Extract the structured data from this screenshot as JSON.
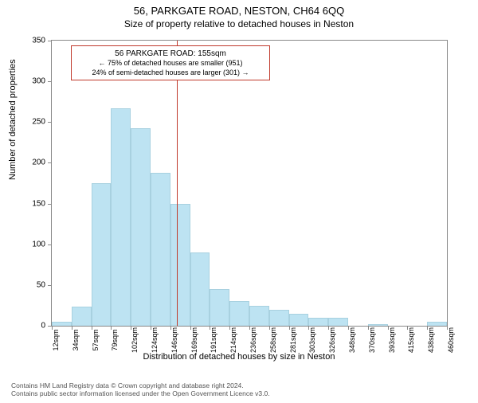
{
  "title_main": "56, PARKGATE ROAD, NESTON, CH64 6QQ",
  "title_sub": "Size of property relative to detached houses in Neston",
  "y_label": "Number of detached properties",
  "x_label": "Distribution of detached houses by size in Neston",
  "chart": {
    "type": "histogram",
    "background_color": "#ffffff",
    "axis_color": "#888888",
    "bar_color": "#bde3f2",
    "bar_border": "#a8d1e0",
    "ylim": [
      0,
      350
    ],
    "ytick_step": 50,
    "yticks": [
      0,
      50,
      100,
      150,
      200,
      250,
      300,
      350
    ],
    "xticks": [
      "12sqm",
      "34sqm",
      "57sqm",
      "79sqm",
      "102sqm",
      "124sqm",
      "146sqm",
      "169sqm",
      "191sqm",
      "214sqm",
      "236sqm",
      "258sqm",
      "281sqm",
      "303sqm",
      "326sqm",
      "348sqm",
      "370sqm",
      "393sqm",
      "415sqm",
      "438sqm",
      "460sqm"
    ],
    "values": [
      5,
      23,
      175,
      267,
      242,
      188,
      150,
      90,
      45,
      30,
      24,
      20,
      15,
      10,
      10,
      0,
      2,
      0,
      0,
      5
    ],
    "vline": {
      "at_index": 6.35,
      "color": "#c0392b",
      "width": 1
    },
    "annot": {
      "border_color": "#c0392b",
      "line1": "56 PARKGATE ROAD: 155sqm",
      "line2": "← 75% of detached houses are smaller (951)",
      "line3": "24% of semi-detached houses are larger (301) →",
      "text_color": "#000000"
    }
  },
  "footer": {
    "line1": "Contains HM Land Registry data © Crown copyright and database right 2024.",
    "line2": "Contains public sector information licensed under the Open Government Licence v3.0.",
    "color": "#555555"
  }
}
